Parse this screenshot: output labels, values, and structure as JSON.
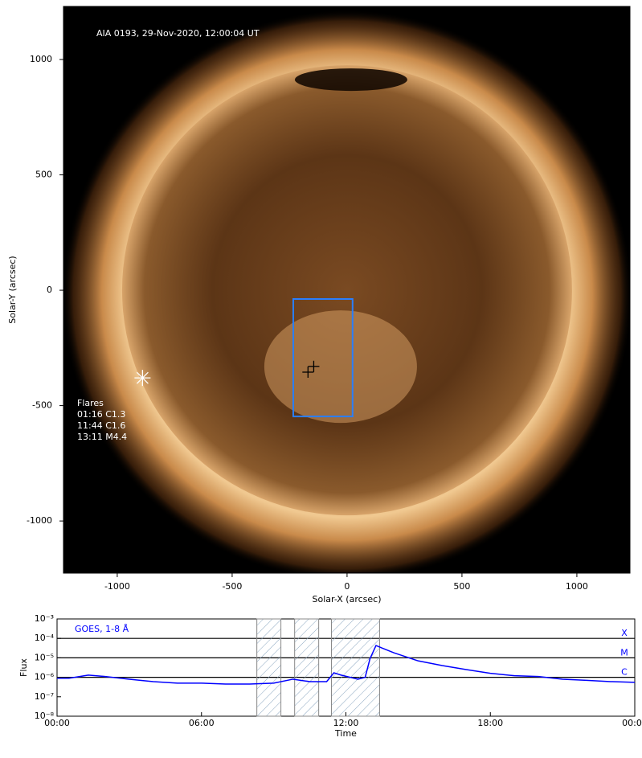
{
  "chart_data": [
    {
      "type": "image",
      "title": "AIA 0193, 29-Nov-2020, 12:00:04 UT",
      "xlabel": "Solar-X (arcsec)",
      "ylabel": "Solar-Y (arcsec)",
      "xlim": [
        -1234,
        1231
      ],
      "ylim": [
        -1226,
        1230
      ],
      "xticks": [
        -1000,
        -500,
        0,
        500,
        1000
      ],
      "yticks": [
        -1000,
        -500,
        0,
        500,
        1000
      ],
      "region": {
        "color": "#2a7fff",
        "x": [
          -234,
          24
        ],
        "y": [
          -547,
          -38
        ]
      },
      "markers": {
        "x": [
          -890,
          -170,
          -145
        ],
        "y": [
          -380,
          -355,
          -330
        ],
        "colors": [
          "#ffffff",
          "#000000",
          "#000000"
        ]
      },
      "flares": {
        "title": "Flares",
        "entries": [
          "01:16 C1.3",
          "11:44 C1.6",
          "13:11 M4.4"
        ]
      }
    },
    {
      "type": "line",
      "xlabel": "Time",
      "ylabel": "Flux",
      "log_y": true,
      "xlim": [
        0,
        24
      ],
      "ylim": [
        1e-08,
        0.001
      ],
      "xticks": [
        {
          "value": 0,
          "label": "00:00"
        },
        {
          "value": 6,
          "label": "06:00"
        },
        {
          "value": 12,
          "label": "12:00"
        },
        {
          "value": 18,
          "label": "18:00"
        },
        {
          "value": 24,
          "label": "00:00"
        }
      ],
      "yticks": [
        {
          "value": 1e-08,
          "label": "10⁻⁸"
        },
        {
          "value": 1e-07,
          "label": "10⁻⁷"
        },
        {
          "value": 1e-06,
          "label": "10⁻⁶"
        },
        {
          "value": 1e-05,
          "label": "10⁻⁵"
        },
        {
          "value": 0.0001,
          "label": "10⁻⁴"
        },
        {
          "value": 0.001,
          "label": "10⁻³"
        }
      ],
      "class_lines": {
        "values": [
          0.0001,
          1e-05,
          1e-06
        ],
        "labels": [
          "X",
          "M",
          "C"
        ]
      },
      "shaded": [
        [
          8.3,
          9.3
        ],
        [
          9.87,
          10.87
        ],
        [
          11.4,
          13.4
        ]
      ],
      "x": [
        0,
        0.5,
        1.3,
        2,
        3,
        4,
        5,
        6,
        7,
        8,
        9,
        9.8,
        10.5,
        11.2,
        11.5,
        11.8,
        12.5,
        12.8,
        13.0,
        13.25,
        13.5,
        14,
        15,
        16,
        17,
        18,
        19,
        20,
        21,
        22,
        23,
        24
      ],
      "series": [
        {
          "name": "GOES, 1-8 Å",
          "color": "#0000ff",
          "values": [
            9e-07,
            9e-07,
            1.3e-06,
            1.1e-06,
            8e-07,
            6e-07,
            5e-07,
            5e-07,
            4.5e-07,
            4.5e-07,
            5e-07,
            8e-07,
            6e-07,
            6e-07,
            1.7e-06,
            1.3e-06,
            8e-07,
            1e-06,
            9e-06,
            4.3e-05,
            3.2e-05,
            1.8e-05,
            7e-06,
            4e-06,
            2.5e-06,
            1.6e-06,
            1.2e-06,
            1.1e-06,
            8e-07,
            7e-07,
            6e-07,
            5.5e-07
          ]
        }
      ]
    }
  ]
}
